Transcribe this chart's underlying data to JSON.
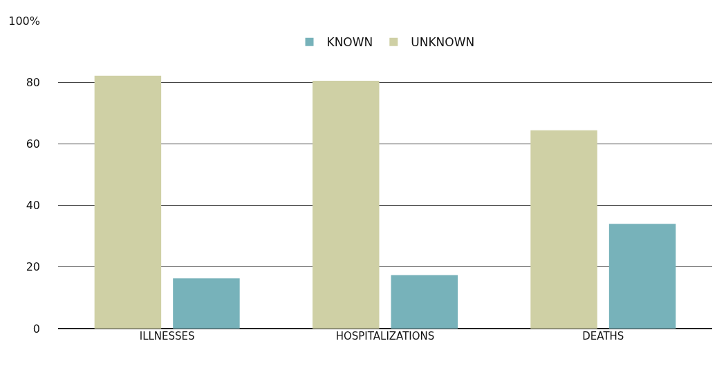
{
  "chart_data": {
    "type": "bar",
    "categories": [
      "ILLNESSES",
      "HOSPITALIZATIONS",
      "DEATHS"
    ],
    "series": [
      {
        "name": "UNKNOWN",
        "color": "#cfd0a5",
        "values": [
          82.1,
          80.5,
          64.4
        ]
      },
      {
        "name": "KNOWN",
        "color": "#77b2ba",
        "values": [
          16.3,
          17.4,
          34.0
        ]
      }
    ],
    "ylim": [
      0,
      100
    ],
    "yticks": [
      0,
      20,
      40,
      60,
      80,
      {
        "value": 100,
        "label": "100%"
      }
    ],
    "grid": "y",
    "legend": "top"
  }
}
